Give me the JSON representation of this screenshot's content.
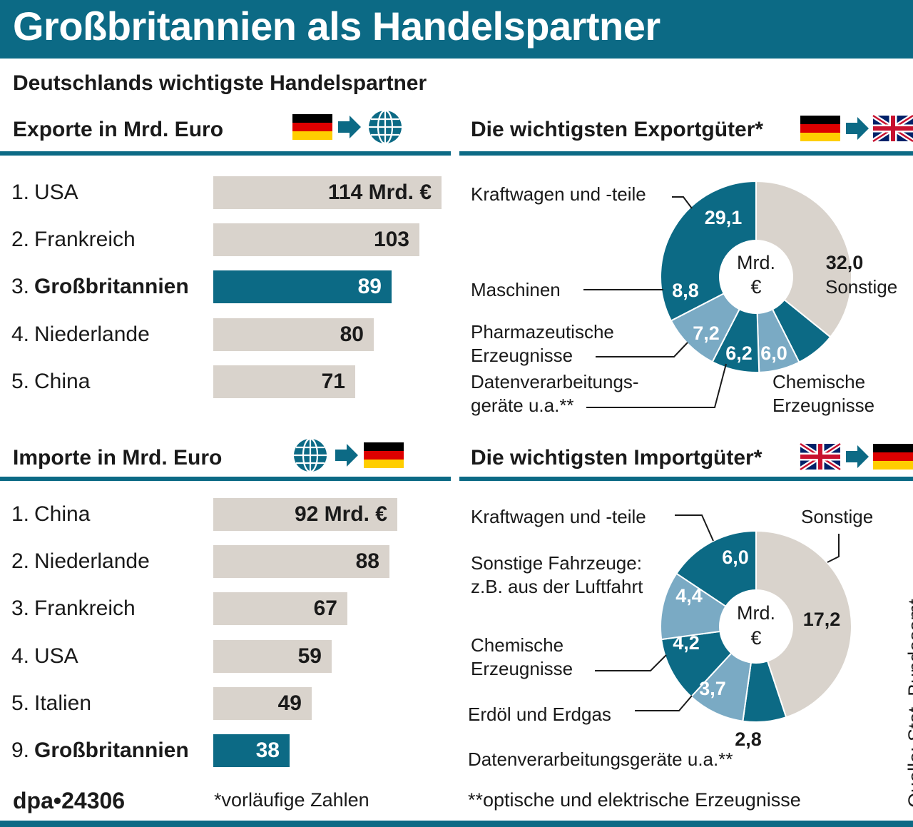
{
  "title": "Großbritannien als Handelspartner",
  "subtitle": "Deutschlands wichtigste Handelspartner",
  "colors": {
    "primary": "#0c6a85",
    "light": "#7aaac4",
    "gray": "#d9d3cc",
    "text": "#1a1a1a"
  },
  "exports": {
    "title": "Exporte in Mrd. Euro",
    "icons": [
      "german-flag-icon",
      "arrow-right-icon",
      "globe-icon"
    ]
  },
  "imports": {
    "title": "Importe in Mrd. Euro",
    "icons": [
      "globe-icon",
      "arrow-right-icon",
      "german-flag-icon"
    ]
  },
  "export_goods": {
    "title": "Die wichtigsten Exportgüter*",
    "icons": [
      "german-flag-icon",
      "arrow-right-icon",
      "uk-flag-icon"
    ],
    "center_label": [
      "Mrd.",
      "€"
    ]
  },
  "import_goods": {
    "title": "Die wichtigsten Importgüter*",
    "icons": [
      "uk-flag-icon",
      "arrow-right-icon",
      "german-flag-icon"
    ],
    "center_label": [
      "Mrd.",
      "€"
    ]
  },
  "chart_data": [
    {
      "type": "bar",
      "title": "Exporte in Mrd. Euro",
      "ranks": [
        "1.",
        "2.",
        "3.",
        "4.",
        "5."
      ],
      "categories": [
        "USA",
        "Frankreich",
        "Großbritannien",
        "Niederlande",
        "China"
      ],
      "values": [
        114,
        103,
        89,
        80,
        71
      ],
      "value_labels": [
        "114 Mrd. €",
        "103",
        "89",
        "80",
        "71"
      ],
      "highlight": "Großbritannien"
    },
    {
      "type": "bar",
      "title": "Importe in Mrd. Euro",
      "ranks": [
        "1.",
        "2.",
        "3.",
        "4.",
        "5.",
        "9."
      ],
      "categories": [
        "China",
        "Niederlande",
        "Frankreich",
        "USA",
        "Italien",
        "Großbritannien"
      ],
      "values": [
        92,
        88,
        67,
        59,
        49,
        38
      ],
      "value_labels": [
        "92 Mrd. €",
        "88",
        "67",
        "59",
        "49",
        "38"
      ],
      "highlight": "Großbritannien"
    },
    {
      "type": "pie",
      "title": "Die wichtigsten Exportgüter*",
      "unit": "Mrd. €",
      "slices": [
        {
          "label": "Kraftwagen und -teile",
          "value": 29.1,
          "value_label": "29,1",
          "color": "#0c6a85"
        },
        {
          "label": "Sonstige",
          "value": 32.0,
          "value_label": "32,0",
          "color": "#d9d3cc"
        },
        {
          "label": "Chemische Erzeugnisse",
          "value": 6.0,
          "value_label": "6,0",
          "color": "#0c6a85"
        },
        {
          "label": "Datenverarbeitungs-geräte u.a.**",
          "value": 6.2,
          "value_label": "6,2",
          "color": "#7aaac4"
        },
        {
          "label": "Pharmazeutische Erzeugnisse",
          "value": 7.2,
          "value_label": "7,2",
          "color": "#0c6a85"
        },
        {
          "label": "Maschinen",
          "value": 8.8,
          "value_label": "8,8",
          "color": "#7aaac4"
        }
      ]
    },
    {
      "type": "pie",
      "title": "Die wichtigsten Importgüter*",
      "unit": "Mrd. €",
      "slices": [
        {
          "label": "Kraftwagen und -teile",
          "value": 6.0,
          "value_label": "6,0",
          "color": "#0c6a85"
        },
        {
          "label": "Sonstige",
          "value": 17.2,
          "value_label": "17,2",
          "color": "#d9d3cc"
        },
        {
          "label": "Datenverarbeitungsgeräte u.a.**",
          "value": 2.8,
          "value_label": "2,8",
          "color": "#0c6a85"
        },
        {
          "label": "Erdöl und Erdgas",
          "value": 3.7,
          "value_label": "3,7",
          "color": "#7aaac4"
        },
        {
          "label": "Chemische Erzeugnisse",
          "value": 4.2,
          "value_label": "4,2",
          "color": "#0c6a85"
        },
        {
          "label": "Sonstige Fahrzeuge: z.B. aus der Luftfahrt",
          "value": 4.4,
          "value_label": "4,4",
          "color": "#7aaac4"
        }
      ]
    }
  ],
  "export_pie_labels": {
    "kraftwagen": "Kraftwagen und -teile",
    "maschinen": "Maschinen",
    "pharma_line1": "Pharmazeutische",
    "pharma_line2": "Erzeugnisse",
    "daten_line1": "Datenverarbeitungs-",
    "daten_line2": "geräte u.a.**",
    "chem_line1": "Chemische",
    "chem_line2": "Erzeugnisse",
    "sonstige": "Sonstige"
  },
  "import_pie_labels": {
    "kraftwagen": "Kraftwagen und -teile",
    "sonstige": "Sonstige",
    "fahrzeuge_line1": "Sonstige Fahrzeuge:",
    "fahrzeuge_line2": "z.B. aus der Luftfahrt",
    "chem_line1": "Chemische",
    "chem_line2": "Erzeugnisse",
    "erdoel": "Erdöl und Erdgas",
    "daten": "Datenverarbeitungsgeräte u.a.**"
  },
  "footer": {
    "dpa": "dpa•24306",
    "note1": "*vorläufige Zahlen",
    "note2": "**optische und elektrische Erzeugnisse",
    "source": "Quelle: Stat. Bundesamt"
  }
}
